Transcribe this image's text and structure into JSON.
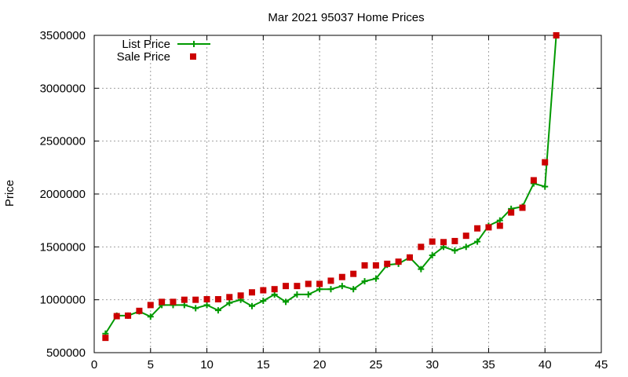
{
  "chart_data": {
    "type": "line",
    "title": "Mar 2021 95037 Home Prices",
    "xlabel": "",
    "ylabel": "Price",
    "xlim": [
      0,
      45
    ],
    "ylim": [
      500000,
      3500000
    ],
    "x_ticks": [
      0,
      5,
      10,
      15,
      20,
      25,
      30,
      35,
      40,
      45
    ],
    "y_ticks": [
      500000,
      1000000,
      1500000,
      2000000,
      2500000,
      3000000,
      3500000
    ],
    "grid": true,
    "legend_position": "top-left",
    "series": [
      {
        "name": "List Price",
        "style": "line-points",
        "color": "#009900",
        "marker": "plus",
        "x": [
          1,
          2,
          3,
          4,
          5,
          6,
          7,
          8,
          9,
          10,
          11,
          12,
          13,
          14,
          15,
          16,
          17,
          18,
          19,
          20,
          21,
          22,
          23,
          24,
          25,
          26,
          27,
          28,
          29,
          30,
          31,
          32,
          33,
          34,
          35,
          36,
          37,
          38,
          39,
          40,
          41
        ],
        "values": [
          680000,
          850000,
          850000,
          890000,
          840000,
          950000,
          950000,
          950000,
          920000,
          950000,
          900000,
          970000,
          1000000,
          940000,
          990000,
          1050000,
          980000,
          1050000,
          1050000,
          1100000,
          1100000,
          1130000,
          1100000,
          1175000,
          1200000,
          1330000,
          1340000,
          1400000,
          1290000,
          1420000,
          1500000,
          1465000,
          1500000,
          1550000,
          1700000,
          1750000,
          1860000,
          1880000,
          2100000,
          2070000,
          3500000
        ]
      },
      {
        "name": "Sale Price",
        "style": "points",
        "color": "#cc0000",
        "marker": "square",
        "x": [
          1,
          2,
          3,
          4,
          5,
          6,
          7,
          8,
          9,
          10,
          11,
          12,
          13,
          14,
          15,
          16,
          17,
          18,
          19,
          20,
          21,
          22,
          23,
          24,
          25,
          26,
          27,
          28,
          29,
          30,
          31,
          32,
          33,
          34,
          35,
          36,
          37,
          38,
          39,
          40,
          41
        ],
        "values": [
          640000,
          845000,
          850000,
          895000,
          950000,
          980000,
          980000,
          1000000,
          1000000,
          1005000,
          1005000,
          1025000,
          1040000,
          1070000,
          1090000,
          1100000,
          1130000,
          1130000,
          1150000,
          1150000,
          1180000,
          1215000,
          1245000,
          1325000,
          1325000,
          1340000,
          1360000,
          1400000,
          1500000,
          1550000,
          1545000,
          1555000,
          1605000,
          1675000,
          1685000,
          1700000,
          1825000,
          1870000,
          2130000,
          2300000,
          3500000
        ]
      }
    ]
  }
}
